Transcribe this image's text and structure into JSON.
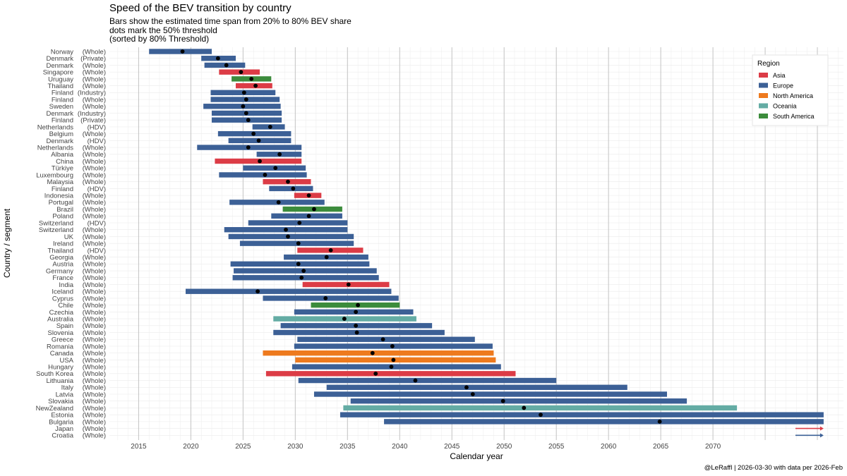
{
  "chart_data": {
    "type": "bar",
    "title": "Speed of the BEV transition by country",
    "subtitle_lines": [
      "Bars show the estimated time span from 20% to 80% BEV share",
      "dots mark the 50% threshold",
      "(sorted by 80% Threshold)"
    ],
    "xlabel": "Calendar year",
    "ylabel": "Country / segment",
    "caption": "@LeRaffl | 2026-03-30 with data per 2026-Feb",
    "xlim": [
      2012.2,
      2082.5
    ],
    "xticks": [
      2015,
      2020,
      2025,
      2030,
      2035,
      2040,
      2045,
      2050,
      2055,
      2060,
      2065,
      2070
    ],
    "legend": {
      "title": "Region",
      "entries": [
        {
          "name": "Asia",
          "color": "#dc3c46"
        },
        {
          "name": "Europe",
          "color": "#3c6096"
        },
        {
          "name": "North America",
          "color": "#ee7a1e"
        },
        {
          "name": "Oceania",
          "color": "#64aca4"
        },
        {
          "name": "South America",
          "color": "#3c8c3c"
        }
      ]
    },
    "rows": [
      {
        "country": "Norway",
        "segment": "(Whole)",
        "region": "Europe",
        "start": 2016.0,
        "end": 2022.0,
        "mid": 2019.2
      },
      {
        "country": "Denmark",
        "segment": "(Private)",
        "region": "Europe",
        "start": 2021.0,
        "end": 2024.3,
        "mid": 2022.6
      },
      {
        "country": "Denmark",
        "segment": "(Whole)",
        "region": "Europe",
        "start": 2021.3,
        "end": 2025.2,
        "mid": 2023.4
      },
      {
        "country": "Singapore",
        "segment": "(Whole)",
        "region": "Asia",
        "start": 2022.7,
        "end": 2026.6,
        "mid": 2024.8
      },
      {
        "country": "Uruguay",
        "segment": "(Whole)",
        "region": "South America",
        "start": 2023.9,
        "end": 2027.7,
        "mid": 2025.8
      },
      {
        "country": "Thailand",
        "segment": "(Whole)",
        "region": "Asia",
        "start": 2024.3,
        "end": 2027.8,
        "mid": 2026.2
      },
      {
        "country": "Finland",
        "segment": "(Industry)",
        "region": "Europe",
        "start": 2021.9,
        "end": 2028.1,
        "mid": 2025.1
      },
      {
        "country": "Finland",
        "segment": "(Whole)",
        "region": "Europe",
        "start": 2021.9,
        "end": 2028.5,
        "mid": 2025.3
      },
      {
        "country": "Sweden",
        "segment": "(Whole)",
        "region": "Europe",
        "start": 2021.2,
        "end": 2028.6,
        "mid": 2025.0
      },
      {
        "country": "Denmark",
        "segment": "(Industry)",
        "region": "Europe",
        "start": 2022.0,
        "end": 2028.7,
        "mid": 2025.3
      },
      {
        "country": "Finland",
        "segment": "(Private)",
        "region": "Europe",
        "start": 2022.0,
        "end": 2028.7,
        "mid": 2025.5
      },
      {
        "country": "Netherlands",
        "segment": "(HDV)",
        "region": "Europe",
        "start": 2025.9,
        "end": 2029.0,
        "mid": 2027.6
      },
      {
        "country": "Belgium",
        "segment": "(Whole)",
        "region": "Europe",
        "start": 2022.6,
        "end": 2029.6,
        "mid": 2026.0
      },
      {
        "country": "Denmark",
        "segment": "(HDV)",
        "region": "Europe",
        "start": 2023.6,
        "end": 2029.6,
        "mid": 2026.5
      },
      {
        "country": "Netherlands",
        "segment": "(Whole)",
        "region": "Europe",
        "start": 2020.6,
        "end": 2030.6,
        "mid": 2025.5
      },
      {
        "country": "Albania",
        "segment": "(Whole)",
        "region": "Europe",
        "start": 2026.3,
        "end": 2030.6,
        "mid": 2028.5
      },
      {
        "country": "China",
        "segment": "(Whole)",
        "region": "Asia",
        "start": 2022.3,
        "end": 2030.6,
        "mid": 2026.6
      },
      {
        "country": "Türkiye",
        "segment": "(Whole)",
        "region": "Europe",
        "start": 2025.0,
        "end": 2031.0,
        "mid": 2028.1
      },
      {
        "country": "Luxembourg",
        "segment": "(Whole)",
        "region": "Europe",
        "start": 2022.7,
        "end": 2031.1,
        "mid": 2027.1
      },
      {
        "country": "Malaysia",
        "segment": "(Whole)",
        "region": "Asia",
        "start": 2026.9,
        "end": 2031.5,
        "mid": 2029.3
      },
      {
        "country": "Finland",
        "segment": "(HDV)",
        "region": "Europe",
        "start": 2027.5,
        "end": 2031.7,
        "mid": 2029.8
      },
      {
        "country": "Indonesia",
        "segment": "(Whole)",
        "region": "Asia",
        "start": 2029.9,
        "end": 2032.5,
        "mid": 2031.3
      },
      {
        "country": "Portugal",
        "segment": "(Whole)",
        "region": "Europe",
        "start": 2023.7,
        "end": 2032.8,
        "mid": 2028.4
      },
      {
        "country": "Brazil",
        "segment": "(Whole)",
        "region": "South America",
        "start": 2028.8,
        "end": 2034.5,
        "mid": 2031.8
      },
      {
        "country": "Poland",
        "segment": "(Whole)",
        "region": "Europe",
        "start": 2027.7,
        "end": 2034.5,
        "mid": 2031.3
      },
      {
        "country": "Switzerland",
        "segment": "(HDV)",
        "region": "Europe",
        "start": 2025.5,
        "end": 2035.0,
        "mid": 2030.4
      },
      {
        "country": "Switzerland",
        "segment": "(Whole)",
        "region": "Europe",
        "start": 2023.2,
        "end": 2035.0,
        "mid": 2029.1
      },
      {
        "country": "UK",
        "segment": "(Whole)",
        "region": "Europe",
        "start": 2023.6,
        "end": 2035.6,
        "mid": 2029.3
      },
      {
        "country": "Ireland",
        "segment": "(Whole)",
        "region": "Europe",
        "start": 2024.7,
        "end": 2035.6,
        "mid": 2030.3
      },
      {
        "country": "Thailand",
        "segment": "(HDV)",
        "region": "Asia",
        "start": 2030.2,
        "end": 2036.5,
        "mid": 2033.4
      },
      {
        "country": "Georgia",
        "segment": "(Whole)",
        "region": "Europe",
        "start": 2028.9,
        "end": 2037.0,
        "mid": 2033.0
      },
      {
        "country": "Austria",
        "segment": "(Whole)",
        "region": "Europe",
        "start": 2023.8,
        "end": 2037.1,
        "mid": 2030.3
      },
      {
        "country": "Germany",
        "segment": "(Whole)",
        "region": "Europe",
        "start": 2024.1,
        "end": 2037.8,
        "mid": 2030.8
      },
      {
        "country": "France",
        "segment": "(Whole)",
        "region": "Europe",
        "start": 2024.0,
        "end": 2038.0,
        "mid": 2030.6
      },
      {
        "country": "India",
        "segment": "(Whole)",
        "region": "Asia",
        "start": 2030.7,
        "end": 2039.0,
        "mid": 2035.1
      },
      {
        "country": "Iceland",
        "segment": "(Whole)",
        "region": "Europe",
        "start": 2019.5,
        "end": 2039.2,
        "mid": 2026.4
      },
      {
        "country": "Cyprus",
        "segment": "(Whole)",
        "region": "Europe",
        "start": 2026.9,
        "end": 2039.9,
        "mid": 2032.9
      },
      {
        "country": "Chile",
        "segment": "(Whole)",
        "region": "South America",
        "start": 2031.5,
        "end": 2040.0,
        "mid": 2036.0
      },
      {
        "country": "Czechia",
        "segment": "(Whole)",
        "region": "Europe",
        "start": 2029.9,
        "end": 2041.3,
        "mid": 2035.8
      },
      {
        "country": "Australia",
        "segment": "(Whole)",
        "region": "Oceania",
        "start": 2027.9,
        "end": 2041.6,
        "mid": 2034.7
      },
      {
        "country": "Spain",
        "segment": "(Whole)",
        "region": "Europe",
        "start": 2028.6,
        "end": 2043.1,
        "mid": 2035.8
      },
      {
        "country": "Slovenia",
        "segment": "(Whole)",
        "region": "Europe",
        "start": 2027.9,
        "end": 2044.3,
        "mid": 2035.9
      },
      {
        "country": "Greece",
        "segment": "(Whole)",
        "region": "Europe",
        "start": 2030.2,
        "end": 2047.2,
        "mid": 2038.4
      },
      {
        "country": "Romania",
        "segment": "(Whole)",
        "region": "Europe",
        "start": 2029.9,
        "end": 2048.9,
        "mid": 2039.3
      },
      {
        "country": "Canada",
        "segment": "(Whole)",
        "region": "North America",
        "start": 2026.9,
        "end": 2049.0,
        "mid": 2037.4
      },
      {
        "country": "USA",
        "segment": "(Whole)",
        "region": "North America",
        "start": 2030.0,
        "end": 2049.2,
        "mid": 2039.4
      },
      {
        "country": "Hungary",
        "segment": "(Whole)",
        "region": "Europe",
        "start": 2029.7,
        "end": 2049.7,
        "mid": 2039.2
      },
      {
        "country": "South Korea",
        "segment": "(Whole)",
        "region": "Asia",
        "start": 2027.2,
        "end": 2051.1,
        "mid": 2037.7
      },
      {
        "country": "Lithuania",
        "segment": "(Whole)",
        "region": "Europe",
        "start": 2030.3,
        "end": 2055.0,
        "mid": 2041.5
      },
      {
        "country": "Italy",
        "segment": "(Whole)",
        "region": "Europe",
        "start": 2033.0,
        "end": 2061.8,
        "mid": 2046.4
      },
      {
        "country": "Latvia",
        "segment": "(Whole)",
        "region": "Europe",
        "start": 2031.8,
        "end": 2065.6,
        "mid": 2047.0
      },
      {
        "country": "Slovakia",
        "segment": "(Whole)",
        "region": "Europe",
        "start": 2035.3,
        "end": 2067.5,
        "mid": 2049.9
      },
      {
        "country": "NewZealand",
        "segment": "(Whole)",
        "region": "Oceania",
        "start": 2034.6,
        "end": 2072.3,
        "mid": 2051.9
      },
      {
        "country": "Estonia",
        "segment": "(Whole)",
        "region": "Europe",
        "start": 2034.3,
        "end": 2080.6,
        "mid": 2053.5
      },
      {
        "country": "Bulgaria",
        "segment": "(Whole)",
        "region": "Europe",
        "start": 2038.5,
        "end": 2080.6,
        "mid": 2064.9
      },
      {
        "country": "Japan",
        "segment": "(Whole)",
        "region": "Asia",
        "arrow": true
      },
      {
        "country": "Croatia",
        "segment": "(Whole)",
        "region": "Europe",
        "arrow": true
      }
    ]
  }
}
